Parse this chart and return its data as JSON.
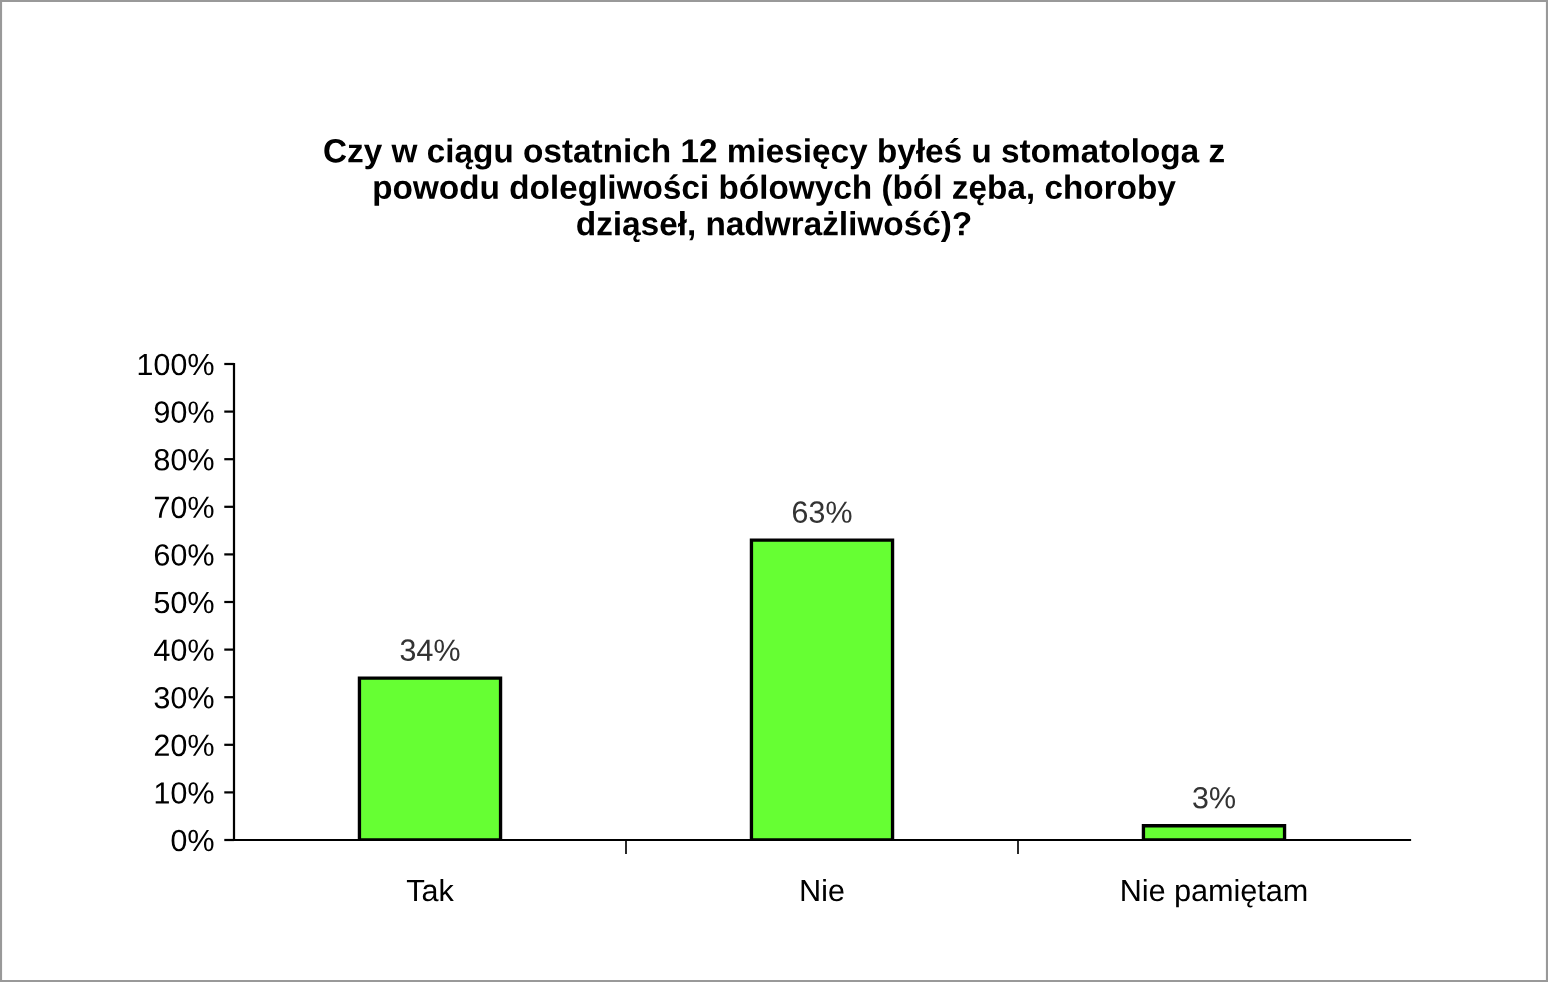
{
  "chart_data": {
    "type": "bar",
    "title": "Czy w ciągu ostatnich 12 miesięcy byłeś u stomatologa z\npowodu dolegliwości bólowych (ból zęba, choroby\ndziąseł, nadwrażliwość)?",
    "categories": [
      "Tak",
      "Nie",
      "Nie pamiętam"
    ],
    "values": [
      34,
      63,
      3
    ],
    "color": "#66ff33",
    "value_labels": [
      "34%",
      "63%",
      "3%"
    ],
    "ylim": [
      0,
      100
    ],
    "yticks": [
      {
        "value": 0,
        "label": "0%"
      },
      {
        "value": 10,
        "label": "10%"
      },
      {
        "value": 20,
        "label": "20%"
      },
      {
        "value": 30,
        "label": "30%"
      },
      {
        "value": 40,
        "label": "40%"
      },
      {
        "value": 50,
        "label": "50%"
      },
      {
        "value": 60,
        "label": "60%"
      },
      {
        "value": 70,
        "label": "70%"
      },
      {
        "value": 80,
        "label": "80%"
      },
      {
        "value": 90,
        "label": "90%"
      },
      {
        "value": 100,
        "label": "100%"
      }
    ],
    "grid": false,
    "legend": false
  }
}
